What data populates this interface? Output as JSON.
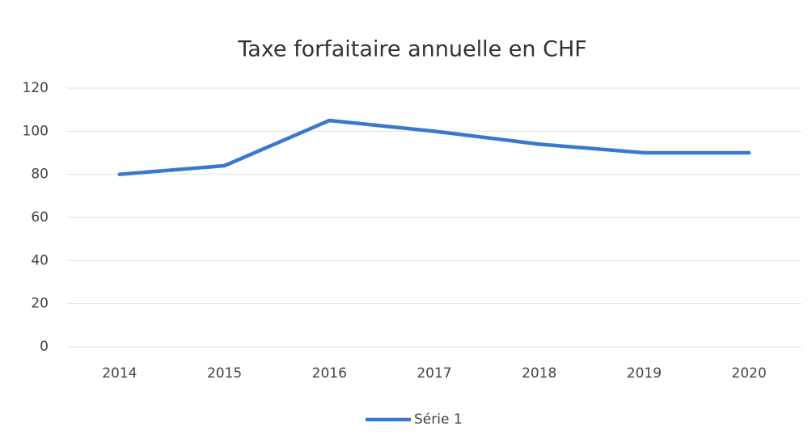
{
  "chart_data": {
    "type": "line",
    "title": "Taxe forfaitaire annuelle en CHF",
    "categories": [
      "2014",
      "2015",
      "2016",
      "2017",
      "2018",
      "2019",
      "2020"
    ],
    "series": [
      {
        "name": "Série 1",
        "color": "#3a78d0",
        "values": [
          80,
          84,
          105,
          100,
          94,
          90,
          90
        ]
      }
    ],
    "ylim": [
      0,
      120
    ],
    "yticks": [
      0,
      20,
      40,
      60,
      80,
      100,
      120
    ],
    "grid": true,
    "legend": "bottom"
  }
}
